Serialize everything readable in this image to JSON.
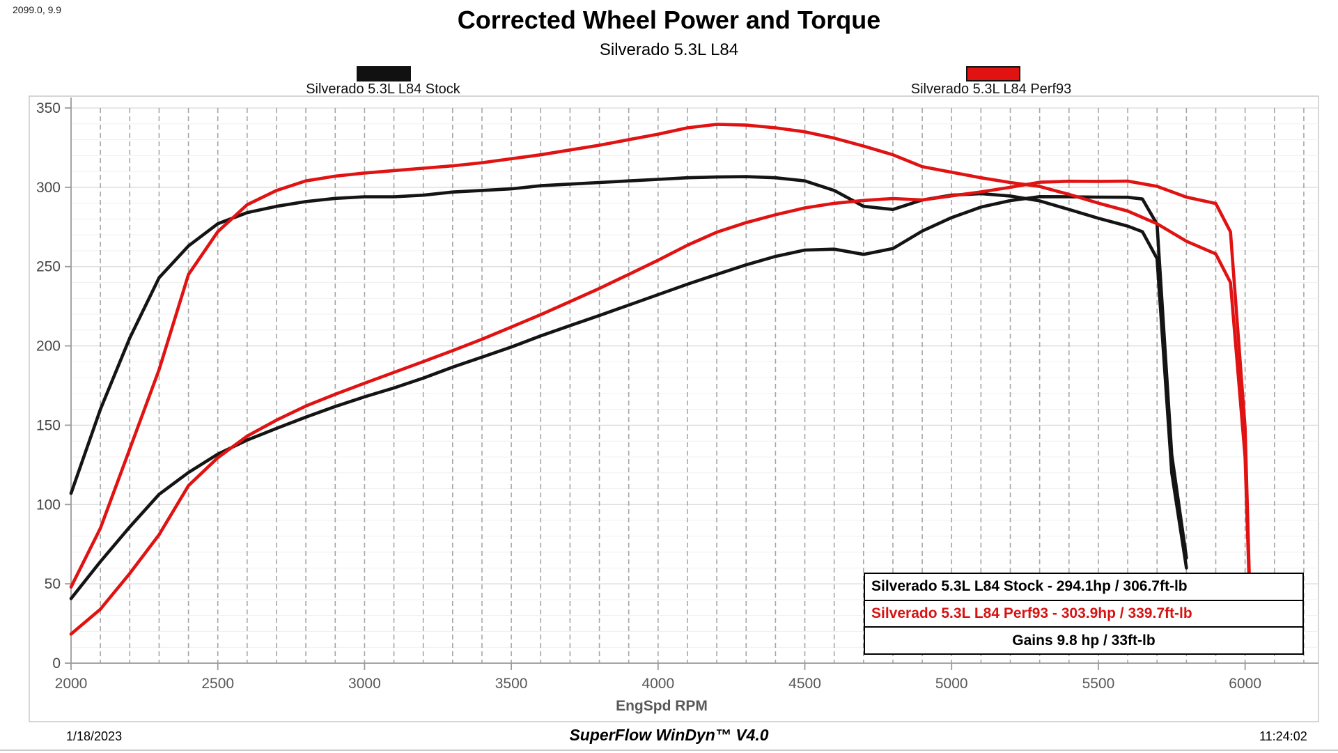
{
  "cursor_readout": "2099.0, 9.9",
  "title": "Corrected Wheel Power and Torque",
  "subtitle": "Silverado 5.3L L84",
  "legend": {
    "stock": {
      "label": "Silverado 5.3L L84 Stock",
      "color": "#111111"
    },
    "perf": {
      "label": "Silverado 5.3L L84 Perf93",
      "color": "#e01212"
    }
  },
  "info_box": {
    "row1": "Silverado 5.3L L84 Stock - 294.1hp / 306.7ft-lb",
    "row2": "Silverado 5.3L L84 Perf93 - 303.9hp / 339.7ft-lb",
    "row3": "Gains 9.8 hp / 33ft-lb",
    "row2_color": "#d61212"
  },
  "footer": {
    "date": "1/18/2023",
    "app": "SuperFlow WinDyn™ V4.0",
    "time": "11:24:02"
  },
  "chart_data": {
    "type": "line",
    "title": "Corrected Wheel Power and Torque",
    "subtitle": "Silverado 5.3L L84",
    "xlabel": "EngSpd RPM",
    "ylabel": "",
    "xlim": [
      2000,
      6250
    ],
    "ylim": [
      0,
      350
    ],
    "x_ticks": [
      2000,
      2500,
      3000,
      3500,
      4000,
      4500,
      5000,
      5500,
      6000
    ],
    "y_ticks": [
      0,
      50,
      100,
      150,
      200,
      250,
      300,
      350
    ],
    "grid": {
      "vertical_dashed_every_rpm": 100,
      "horizontal_major_every": 50,
      "horizontal_minor_every": 10
    },
    "legend_position": "top",
    "peaks": {
      "stock_hp": 294.1,
      "stock_tq": 306.7,
      "perf93_hp": 303.9,
      "perf93_tq": 339.7,
      "gain_hp": 9.8,
      "gain_tq": 33
    },
    "runs": [
      {
        "name": "Silverado 5.3L L84 Stock",
        "color": "#141414",
        "rpm": [
          2000,
          2100,
          2200,
          2300,
          2400,
          2500,
          2600,
          2700,
          2800,
          2900,
          3000,
          3100,
          3200,
          3300,
          3400,
          3500,
          3600,
          3700,
          3800,
          3900,
          4000,
          4100,
          4200,
          4300,
          4400,
          4500,
          4600,
          4700,
          4800,
          4900,
          5000,
          5100,
          5200,
          5300,
          5400,
          5500,
          5600,
          5650,
          5700,
          5750,
          5800
        ],
        "torque": [
          107,
          160,
          205,
          243,
          263,
          277,
          284,
          288,
          291,
          293,
          294,
          294,
          295,
          297,
          298,
          299,
          301,
          302,
          303,
          304,
          305,
          306,
          306.5,
          306.7,
          306,
          304,
          298,
          288,
          286,
          292,
          295,
          296,
          294.5,
          291.4,
          286,
          280.5,
          275.5,
          272,
          255,
          120,
          60
        ],
        "power": [
          40.7,
          64.0,
          85.9,
          106.4,
          120.2,
          131.8,
          140.6,
          148.0,
          155.1,
          161.8,
          167.9,
          173.5,
          179.7,
          186.6,
          192.9,
          199.3,
          206.3,
          212.8,
          219.2,
          225.7,
          232.3,
          238.9,
          245.1,
          251.1,
          256.4,
          260.4,
          261.0,
          257.7,
          261.4,
          272.4,
          280.9,
          287.5,
          291.6,
          294.1,
          294.0,
          293.8,
          293.7,
          292.6,
          276.7,
          131.4,
          66.3
        ]
      },
      {
        "name": "Silverado 5.3L L84 Perf93",
        "color": "#e01212",
        "rpm": [
          2000,
          2100,
          2200,
          2300,
          2400,
          2500,
          2600,
          2700,
          2800,
          2900,
          3000,
          3100,
          3200,
          3300,
          3400,
          3500,
          3600,
          3700,
          3800,
          3900,
          4000,
          4100,
          4200,
          4300,
          4400,
          4500,
          4600,
          4700,
          4800,
          4900,
          5000,
          5100,
          5200,
          5300,
          5400,
          5500,
          5600,
          5700,
          5800,
          5900,
          5950,
          6000,
          6020
        ],
        "torque": [
          48,
          85,
          135,
          185,
          245,
          272,
          289,
          298,
          304,
          307,
          309,
          310.5,
          312,
          313.5,
          315.5,
          318,
          320.5,
          323.5,
          326.5,
          330,
          333.5,
          337.5,
          339.7,
          339.2,
          337.5,
          335,
          331,
          326,
          320.5,
          313,
          309.5,
          306,
          303,
          300.5,
          295.5,
          290,
          285,
          277,
          266,
          258,
          240,
          130,
          15
        ],
        "power": [
          18.3,
          34.0,
          56.5,
          81.0,
          111.9,
          129.5,
          143.1,
          153.2,
          162.1,
          169.5,
          176.5,
          183.3,
          190.1,
          197.0,
          204.2,
          211.9,
          219.7,
          227.9,
          236.2,
          245.1,
          254.0,
          263.5,
          271.7,
          277.7,
          282.7,
          287.0,
          289.9,
          291.7,
          292.9,
          292.0,
          294.6,
          297.1,
          300.0,
          303.2,
          303.8,
          303.7,
          303.9,
          300.6,
          293.8,
          289.8,
          271.9,
          148.5,
          17.2
        ]
      }
    ]
  }
}
